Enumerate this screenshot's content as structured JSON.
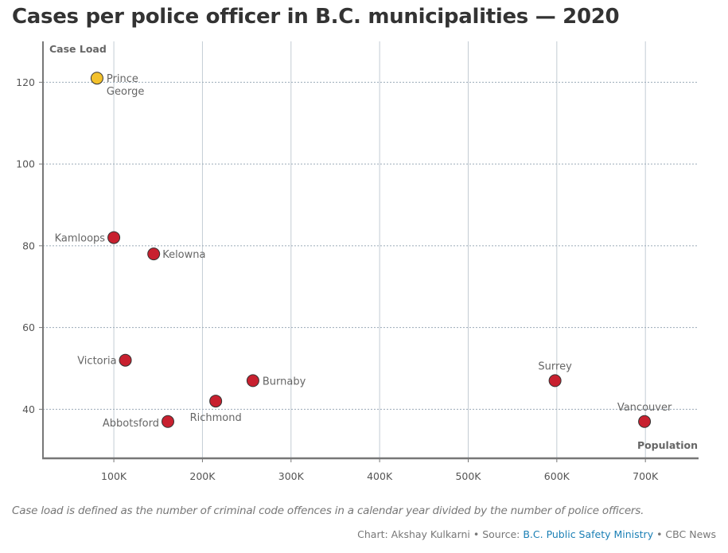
{
  "title": "Cases per police officer in B.C. municipalities — 2020",
  "note": "Case load is defined as the number of criminal code offences in a calendar year divided by the number of police officers.",
  "credits": {
    "chart_prefix": "Chart: Akshay Kulkarni • Source: ",
    "source_link": "B.C. Public Safety Ministry",
    "suffix": " • CBC News"
  },
  "colors": {
    "default_point": "#c8202f",
    "highlight_point": "#f3c12c",
    "axis": "#777777",
    "text": "#555555"
  },
  "chart_data": {
    "type": "scatter",
    "xlabel": "Population",
    "ylabel": "Case Load",
    "xlim": [
      20000,
      760000
    ],
    "ylim": [
      28,
      130
    ],
    "x_ticks": [
      100000,
      200000,
      300000,
      400000,
      500000,
      600000,
      700000
    ],
    "x_tick_labels": [
      "100K",
      "200K",
      "300K",
      "400K",
      "500K",
      "600K",
      "700K"
    ],
    "y_ticks": [
      40,
      60,
      80,
      100,
      120
    ],
    "y_tick_labels": [
      "40",
      "60",
      "80",
      "100",
      "120"
    ],
    "x_grid": true,
    "y_grid": "dotted",
    "points": [
      {
        "label": "Prince George",
        "x": 81000,
        "y": 121,
        "highlight": true
      },
      {
        "label": "Kamloops",
        "x": 100000,
        "y": 82,
        "highlight": false
      },
      {
        "label": "Kelowna",
        "x": 145000,
        "y": 78,
        "highlight": false
      },
      {
        "label": "Victoria",
        "x": 113000,
        "y": 52,
        "highlight": false
      },
      {
        "label": "Burnaby",
        "x": 257000,
        "y": 47,
        "highlight": false
      },
      {
        "label": "Richmond",
        "x": 215000,
        "y": 42,
        "highlight": false
      },
      {
        "label": "Abbotsford",
        "x": 161000,
        "y": 37,
        "highlight": false
      },
      {
        "label": "Surrey",
        "x": 598000,
        "y": 47,
        "highlight": false
      },
      {
        "label": "Vancouver",
        "x": 699000,
        "y": 37,
        "highlight": false
      }
    ]
  }
}
